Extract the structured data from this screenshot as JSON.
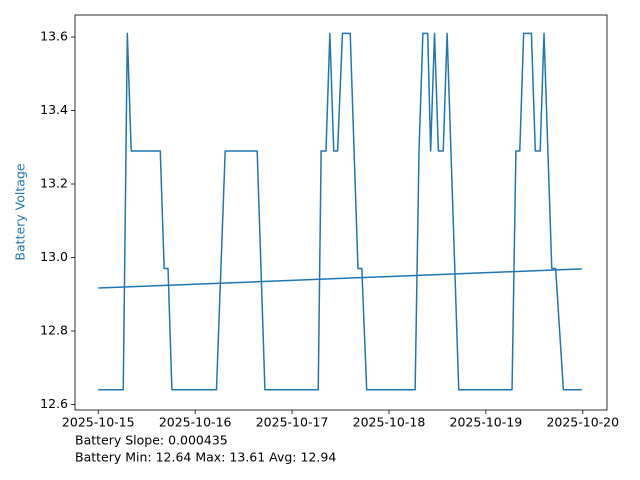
{
  "chart_data": {
    "type": "line",
    "y_label": "Battery Voltage",
    "y_label_color": "#1f77b4",
    "x": [
      0,
      0.258,
      0.3,
      0.34,
      0.64,
      0.68,
      0.72,
      0.76,
      1.22,
      1.31,
      1.64,
      1.72,
      2.27,
      2.3,
      2.35,
      2.39,
      2.43,
      2.47,
      2.52,
      2.6,
      2.68,
      2.72,
      2.77,
      3.27,
      3.31,
      3.35,
      3.4,
      3.43,
      3.47,
      3.51,
      3.56,
      3.6,
      3.72,
      4.27,
      4.31,
      4.35,
      4.39,
      4.47,
      4.51,
      4.56,
      4.6,
      4.68,
      4.72,
      4.8,
      4.99
    ],
    "series": [
      {
        "color": "#1f77b4",
        "values": [
          12.64,
          12.64,
          13.61,
          13.29,
          13.29,
          12.97,
          12.97,
          12.64,
          12.64,
          13.29,
          13.29,
          12.64,
          12.64,
          13.29,
          13.29,
          13.61,
          13.29,
          13.29,
          13.61,
          13.61,
          12.97,
          12.97,
          12.64,
          12.64,
          13.29,
          13.61,
          13.61,
          13.29,
          13.61,
          13.29,
          13.29,
          13.61,
          12.64,
          12.64,
          13.29,
          13.29,
          13.61,
          13.61,
          13.29,
          13.29,
          13.61,
          12.97,
          12.97,
          12.64,
          12.64
        ]
      },
      {
        "color": "#1f77b4",
        "x": [
          0,
          4.99
        ],
        "values": [
          12.917,
          12.969
        ]
      }
    ],
    "xlim": [
      -0.24,
      5.25
    ],
    "ylim": [
      12.585,
      13.66
    ],
    "xticks": [
      {
        "value": 0,
        "label": "2025-10-15"
      },
      {
        "value": 1,
        "label": "2025-10-16"
      },
      {
        "value": 2,
        "label": "2025-10-17"
      },
      {
        "value": 3,
        "label": "2025-10-18"
      },
      {
        "value": 4,
        "label": "2025-10-19"
      },
      {
        "value": 5,
        "label": "2025-10-20"
      }
    ],
    "yticks": [
      {
        "value": 12.6,
        "label": "12.6"
      },
      {
        "value": 12.8,
        "label": "12.8"
      },
      {
        "value": 13.0,
        "label": "13.0"
      },
      {
        "value": 13.2,
        "label": "13.2"
      },
      {
        "value": 13.4,
        "label": "13.4"
      },
      {
        "value": 13.6,
        "label": "13.6"
      }
    ],
    "annotations": [
      "Battery Slope: 0.000435",
      "Battery Min: 12.64 Max: 13.61 Avg: 12.94"
    ]
  }
}
